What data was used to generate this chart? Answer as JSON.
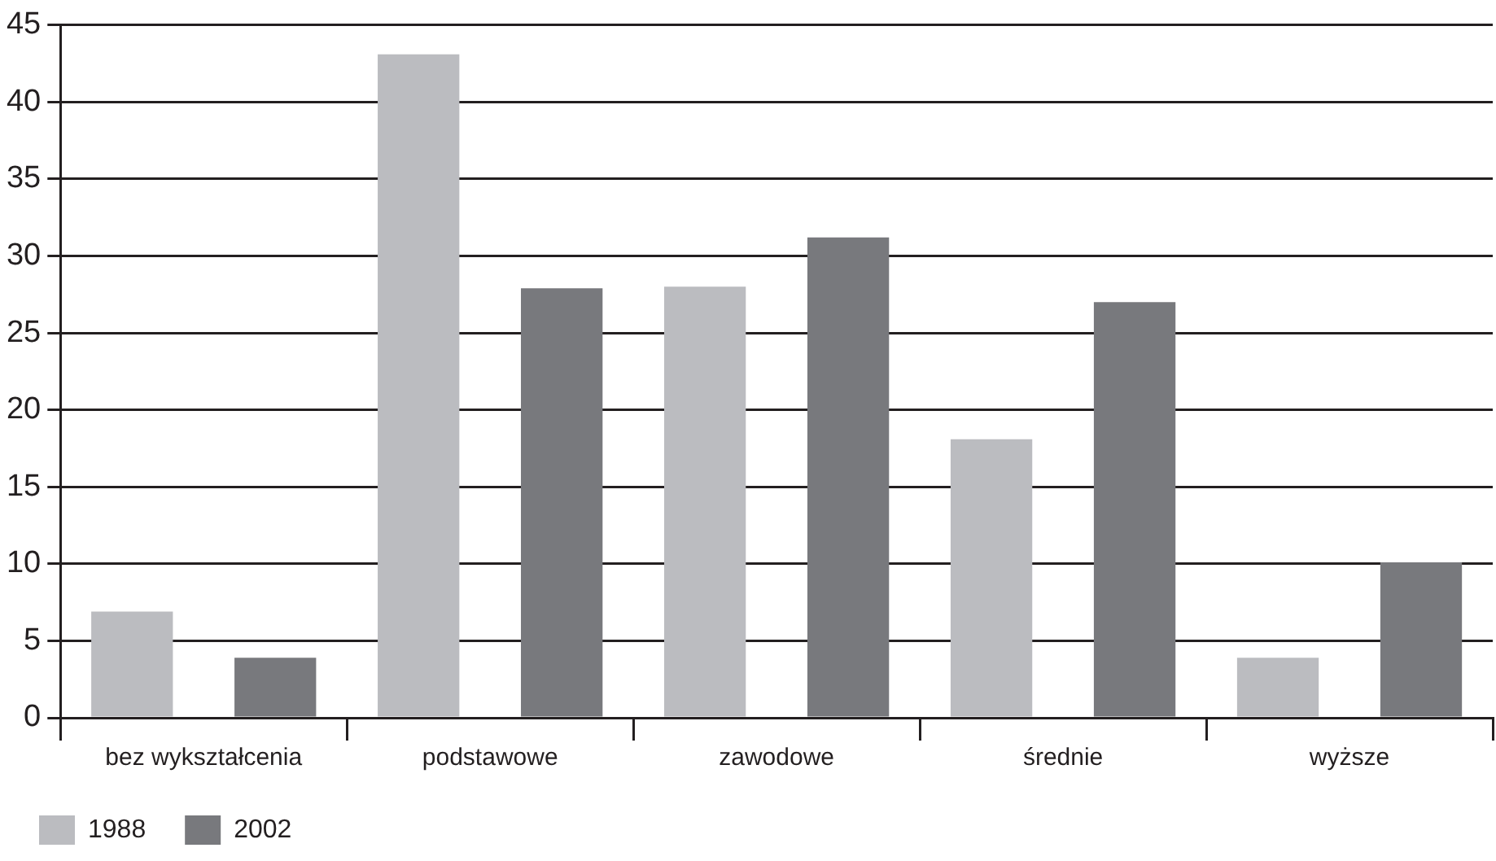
{
  "chart_data": {
    "type": "bar",
    "categories": [
      "bez wykształcenia",
      "podstawowe",
      "zawodowe",
      "średnie",
      "wyższe"
    ],
    "series": [
      {
        "name": "1988",
        "color": "#bbbcc0",
        "values": [
          6.9,
          43.1,
          28.0,
          18.1,
          3.9
        ]
      },
      {
        "name": "2002",
        "color": "#78797d",
        "values": [
          3.9,
          27.9,
          31.2,
          27.0,
          10.1
        ]
      }
    ],
    "ylim": [
      0,
      45
    ],
    "yticks": [
      0,
      5,
      10,
      15,
      20,
      25,
      30,
      35,
      40,
      45
    ],
    "grid": "y",
    "legend": "bottom left"
  }
}
